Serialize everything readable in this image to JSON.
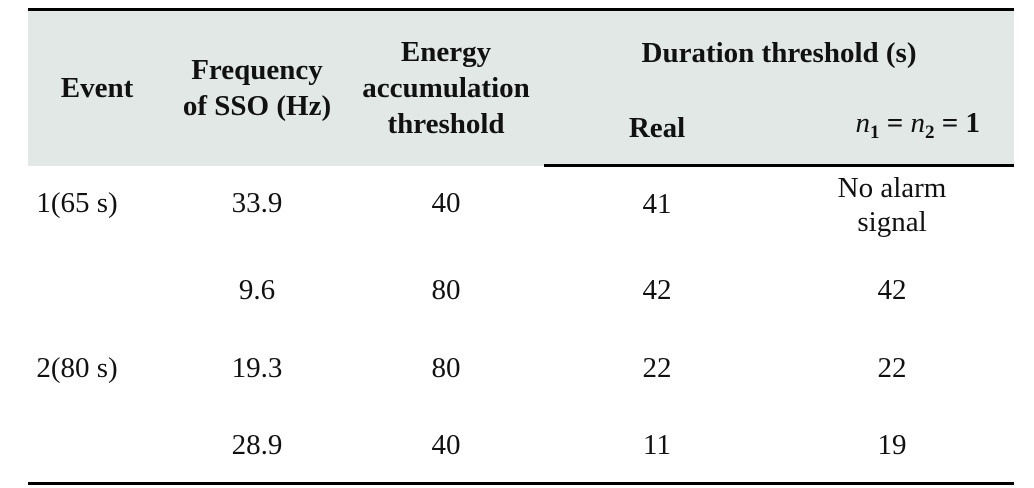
{
  "table": {
    "headers": {
      "event": "Event",
      "frequency_line1": "Frequency",
      "frequency_line2": "of SSO (Hz)",
      "energy_line1": "Energy",
      "energy_line2": "accumulation",
      "energy_line3": "threshold",
      "duration": "Duration threshold (s)",
      "real": "Real",
      "n_condition": {
        "n1_var": "n",
        "n1_sub": "1",
        "eq1": " = ",
        "n2_var": "n",
        "n2_sub": "2",
        "eq2": " = ",
        "value": "1"
      }
    },
    "rows": [
      {
        "event": "1(65 s)",
        "frequency": "33.9",
        "energy": "40",
        "real": "41",
        "n_equal_one_line1": "No alarm",
        "n_equal_one_line2": "signal"
      },
      {
        "event": "",
        "frequency": "9.6",
        "energy": "80",
        "real": "42",
        "n_equal_one": "42"
      },
      {
        "event": "2(80 s)",
        "frequency": "19.3",
        "energy": "80",
        "real": "22",
        "n_equal_one": "22"
      },
      {
        "event": "",
        "frequency": "28.9",
        "energy": "40",
        "real": "11",
        "n_equal_one": "19"
      }
    ]
  }
}
